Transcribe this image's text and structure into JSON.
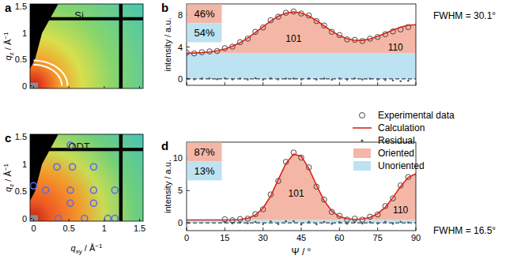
{
  "chart_data": [
    {
      "type": "image",
      "panel": "a",
      "label": "Si",
      "xlim": [
        -0.05,
        1.55
      ],
      "ylim": [
        -0.05,
        1.55
      ],
      "xticks": [
        0,
        0.5,
        1,
        1.5
      ],
      "yticks": [
        0,
        0.5,
        1,
        1.5
      ],
      "tick_labels": "y",
      "ylabel": {
        "symbol": "q",
        "sub": "z",
        "unit": " / Å",
        "sup": "−1"
      },
      "rings": [
        0.4,
        0.48
      ],
      "color": "#ffffff"
    },
    {
      "type": "line",
      "panel": "b",
      "x": [
        0,
        3,
        6,
        9,
        12,
        15,
        18,
        21,
        24,
        27,
        30,
        33,
        36,
        39,
        42,
        45,
        48,
        51,
        54,
        57,
        60,
        63,
        66,
        69,
        72,
        75,
        78,
        81,
        84,
        87,
        90
      ],
      "xlim": [
        0,
        90
      ],
      "xticks": [
        0,
        15,
        30,
        45,
        60,
        75,
        90
      ],
      "ylim": [
        -0.8,
        9.4
      ],
      "yticks": [
        0,
        4,
        8
      ],
      "tick_labels": "y",
      "ylabel": "intensity / a.u.",
      "stacked": true,
      "legend": "right",
      "reference_line": 0,
      "series": [
        {
          "name": "Experimental data",
          "type": "scatter",
          "marker": "circle",
          "color": "#333333",
          "values": [
            3.3,
            3.2,
            3.35,
            3.45,
            3.5,
            3.85,
            4.05,
            4.6,
            5.05,
            5.9,
            6.45,
            7.35,
            7.8,
            8.3,
            8.45,
            8.2,
            7.95,
            7.25,
            6.7,
            5.9,
            5.5,
            4.95,
            4.9,
            4.75,
            5.05,
            5.25,
            5.6,
            5.95,
            6.2,
            6.5,
            null
          ]
        },
        {
          "name": "Calculation",
          "type": "line",
          "color": "#d7261b",
          "values": [
            3.22,
            3.25,
            3.3,
            3.39,
            3.53,
            3.76,
            4.1,
            4.55,
            5.13,
            5.82,
            6.55,
            7.26,
            7.86,
            8.26,
            8.4,
            8.27,
            7.89,
            7.32,
            6.65,
            6.0,
            5.43,
            5.04,
            4.84,
            4.83,
            5.01,
            5.33,
            5.72,
            6.13,
            6.48,
            6.72,
            6.8
          ]
        },
        {
          "name": "Residual",
          "type": "scatter",
          "marker": "dot",
          "color": "#555555",
          "values": [
            0.08,
            -0.05,
            0.05,
            0.06,
            -0.03,
            0.09,
            -0.05,
            0.05,
            -0.08,
            0.08,
            -0.1,
            0.09,
            -0.06,
            0.04,
            0.05,
            -0.07,
            0.06,
            -0.07,
            0.05,
            -0.1,
            0.07,
            -0.09,
            0.06,
            -0.08,
            0.04,
            -0.08,
            -0.12,
            -0.18,
            -0.28,
            -0.22,
            null
          ]
        },
        {
          "name": "Oriented",
          "type": "area",
          "color": "#f4b7a7",
          "values": [
            0.02,
            0.05,
            0.1,
            0.19,
            0.33,
            0.56,
            0.9,
            1.35,
            1.93,
            2.62,
            3.35,
            4.06,
            4.66,
            5.06,
            5.2,
            5.07,
            4.69,
            4.12,
            3.45,
            2.8,
            2.23,
            1.84,
            1.64,
            1.63,
            1.81,
            2.13,
            2.52,
            2.93,
            3.28,
            3.52,
            3.6
          ]
        },
        {
          "name": "Unoriented",
          "type": "area",
          "color": "#bde2f2",
          "values": [
            3.2,
            3.2,
            3.2,
            3.2,
            3.2,
            3.2,
            3.2,
            3.2,
            3.2,
            3.2,
            3.2,
            3.2,
            3.2,
            3.2,
            3.2,
            3.2,
            3.2,
            3.2,
            3.2,
            3.2,
            3.2,
            3.2,
            3.2,
            3.2,
            3.2,
            3.2,
            3.2,
            3.2,
            3.2,
            3.2,
            3.2
          ]
        }
      ],
      "fractions": [
        {
          "value": 46,
          "label": "46%",
          "color": "#f4b7a7"
        },
        {
          "value": 54,
          "label": "54%",
          "color": "#bde2f2"
        }
      ],
      "annotations": [
        {
          "text": "101",
          "x": 42,
          "y": 5.0
        },
        {
          "text": "110",
          "x": 82,
          "y": 4.0
        }
      ],
      "fwhm": "FWHM = 30.1°"
    },
    {
      "type": "scatter",
      "panel": "c",
      "label": "ODT",
      "xlim": [
        -0.05,
        1.55
      ],
      "ylim": [
        -0.05,
        1.55
      ],
      "xticks": [
        0,
        0.5,
        1,
        1.5
      ],
      "yticks": [
        0,
        0.5,
        1,
        1.5
      ],
      "tick_labels": true,
      "xlabel": {
        "symbol": "q",
        "sub": "xy",
        "unit": " / Å",
        "sup": "−1"
      },
      "ylabel": {
        "symbol": "q",
        "sub": "z",
        "unit": " / Å",
        "sup": "−1"
      },
      "marker": "circle",
      "color": "#5b6cf0",
      "x": [
        0.52,
        0.33,
        0.55,
        0.85,
        0.0,
        0.17,
        0.52,
        0.85,
        1.15,
        0.52,
        0.85,
        0.35,
        0.72,
        1.05,
        1.15
      ],
      "values": [
        1.35,
        0.95,
        0.95,
        0.95,
        0.6,
        0.52,
        0.52,
        0.52,
        0.52,
        0.28,
        0.28,
        0.0,
        0.0,
        0.0,
        0.0
      ]
    },
    {
      "type": "line",
      "panel": "d",
      "x": [
        0,
        3,
        6,
        9,
        12,
        15,
        18,
        21,
        24,
        27,
        30,
        33,
        36,
        39,
        42,
        45,
        48,
        51,
        54,
        57,
        60,
        63,
        66,
        69,
        72,
        75,
        78,
        81,
        84,
        87,
        90
      ],
      "xlim": [
        0,
        90
      ],
      "xticks": [
        0,
        15,
        30,
        45,
        60,
        75,
        90
      ],
      "ylim": [
        -1.2,
        12.5
      ],
      "yticks": [
        0,
        5,
        10
      ],
      "tick_labels": true,
      "xlabel": "Ψ / °",
      "ylabel": "intensity / a.u.",
      "stacked": true,
      "reference_line": 0,
      "series": [
        {
          "type": "scatter",
          "marker": "circle",
          "color": "#333333",
          "values": [
            null,
            null,
            null,
            null,
            null,
            0.55,
            0.4,
            0.6,
            0.65,
            1.35,
            2.1,
            4.4,
            6.5,
            9.45,
            10.9,
            10.1,
            8.6,
            5.6,
            3.6,
            1.7,
            1.1,
            0.5,
            0.65,
            0.5,
            0.95,
            1.3,
            2.6,
            3.8,
            5.8,
            7.1,
            null
          ]
        },
        {
          "type": "line",
          "color": "#d7261b",
          "values": [
            0.45,
            0.45,
            0.45,
            0.45,
            0.45,
            0.45,
            0.47,
            0.52,
            0.71,
            1.21,
            2.29,
            4.16,
            6.7,
            9.2,
            10.65,
            10.34,
            8.43,
            5.81,
            3.45,
            1.84,
            0.99,
            0.63,
            0.54,
            0.6,
            0.85,
            1.41,
            2.43,
            3.92,
            5.64,
            7.05,
            7.6
          ]
        },
        {
          "type": "scatter",
          "marker": "dot",
          "color": "#555555",
          "values": [
            null,
            null,
            null,
            null,
            null,
            0.1,
            -0.07,
            0.08,
            -0.06,
            0.14,
            -0.19,
            0.24,
            -0.2,
            0.25,
            0.25,
            -0.24,
            0.17,
            -0.21,
            0.15,
            -0.14,
            0.11,
            -0.13,
            0.11,
            -0.1,
            0.1,
            -0.11,
            0.17,
            -0.12,
            0.16,
            0.05,
            null
          ]
        },
        {
          "type": "area",
          "color": "#f4b7a7",
          "values": [
            0,
            0,
            0,
            0,
            0,
            0,
            0.02,
            0.07,
            0.26,
            0.76,
            1.84,
            3.71,
            6.25,
            8.75,
            10.2,
            9.89,
            7.98,
            5.36,
            3.0,
            1.39,
            0.54,
            0.18,
            0.09,
            0.15,
            0.4,
            0.96,
            1.98,
            3.47,
            5.19,
            6.6,
            7.15
          ]
        },
        {
          "type": "area",
          "color": "#bde2f2",
          "values": [
            0.45,
            0.45,
            0.45,
            0.45,
            0.45,
            0.45,
            0.45,
            0.45,
            0.45,
            0.45,
            0.45,
            0.45,
            0.45,
            0.45,
            0.45,
            0.45,
            0.45,
            0.45,
            0.45,
            0.45,
            0.45,
            0.45,
            0.45,
            0.45,
            0.45,
            0.45,
            0.45,
            0.45,
            0.45,
            0.45,
            0.45
          ]
        }
      ],
      "fractions": [
        {
          "value": 87,
          "label": "87%",
          "color": "#f4b7a7"
        },
        {
          "value": 13,
          "label": "13%",
          "color": "#bde2f2"
        }
      ],
      "annotations": [
        {
          "text": "101",
          "x": 43,
          "y": 4.5
        },
        {
          "text": "110",
          "x": 84,
          "y": 2.0
        }
      ],
      "fwhm": "FWHM = 16.5°"
    }
  ]
}
